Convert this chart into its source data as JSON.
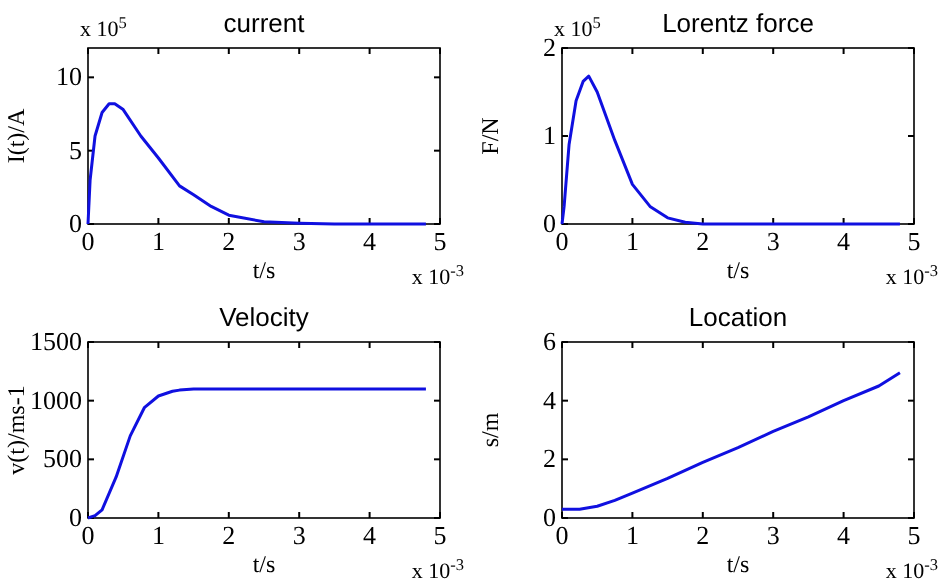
{
  "chart_data": [
    {
      "type": "line",
      "title": "current",
      "xlabel": "t/s",
      "ylabel": "I(t)/A",
      "annotations": [
        "x 10$^{5}$",
        "x 10$^{-3}$"
      ],
      "xlim": [
        0,
        5
      ],
      "xticks": [
        0,
        1,
        2,
        3,
        4,
        5
      ],
      "ylim": [
        0,
        12
      ],
      "yticks": [
        0,
        5,
        10
      ],
      "series": [
        {
          "color": "#1010e0",
          "x": [
            0,
            0.03,
            0.1,
            0.2,
            0.3,
            0.38,
            0.5,
            0.75,
            1,
            1.3,
            1.5,
            1.75,
            2,
            2.5,
            3,
            3.5,
            4.8
          ],
          "values": [
            0,
            3,
            6,
            7.6,
            8.2,
            8.2,
            7.8,
            6,
            4.5,
            2.6,
            2,
            1.2,
            0.6,
            0.15,
            0.05,
            0,
            0
          ]
        }
      ]
    },
    {
      "type": "line",
      "title": "Lorentz force",
      "xlabel": "t/s",
      "ylabel": "F/N",
      "annotations": [
        "x 10$^{5}$",
        "x 10$^{-3}$"
      ],
      "xlim": [
        0,
        5
      ],
      "xticks": [
        0,
        1,
        2,
        3,
        4,
        5
      ],
      "ylim": [
        0,
        2
      ],
      "yticks": [
        0,
        1,
        2
      ],
      "series": [
        {
          "color": "#1010e0",
          "x": [
            0,
            0.03,
            0.1,
            0.2,
            0.3,
            0.38,
            0.5,
            0.75,
            1,
            1.25,
            1.5,
            1.75,
            2,
            3,
            4.8
          ],
          "values": [
            0,
            0.2,
            0.9,
            1.4,
            1.62,
            1.68,
            1.5,
            0.95,
            0.45,
            0.2,
            0.07,
            0.02,
            0,
            0,
            0
          ]
        }
      ]
    },
    {
      "type": "line",
      "title": "Velocity",
      "xlabel": "t/s",
      "ylabel": "v(t)/ms-1",
      "annotations": [
        "x 10$^{-3}$"
      ],
      "xlim": [
        0,
        5
      ],
      "xticks": [
        0,
        1,
        2,
        3,
        4,
        5
      ],
      "ylim": [
        0,
        1500
      ],
      "yticks": [
        0,
        500,
        1000,
        1500
      ],
      "series": [
        {
          "color": "#1010e0",
          "x": [
            0,
            0.1,
            0.2,
            0.4,
            0.6,
            0.8,
            1,
            1.2,
            1.3,
            1.5,
            2,
            4.8
          ],
          "values": [
            0,
            20,
            70,
            350,
            700,
            940,
            1040,
            1080,
            1090,
            1100,
            1100,
            1100
          ]
        }
      ]
    },
    {
      "type": "line",
      "title": "Location",
      "xlabel": "t/s",
      "ylabel": "s/m",
      "annotations": [
        "x 10$^{-3}$"
      ],
      "xlim": [
        0,
        5
      ],
      "xticks": [
        0,
        1,
        2,
        3,
        4,
        5
      ],
      "ylim": [
        0,
        6
      ],
      "yticks": [
        0,
        2,
        4,
        6
      ],
      "series": [
        {
          "color": "#1010e0",
          "x": [
            0,
            0.25,
            0.5,
            0.75,
            1,
            1.5,
            2,
            2.5,
            3,
            3.5,
            4,
            4.5,
            4.8
          ],
          "values": [
            0.3,
            0.3,
            0.4,
            0.6,
            0.85,
            1.35,
            1.9,
            2.4,
            2.95,
            3.45,
            4,
            4.5,
            4.95
          ]
        }
      ]
    }
  ]
}
